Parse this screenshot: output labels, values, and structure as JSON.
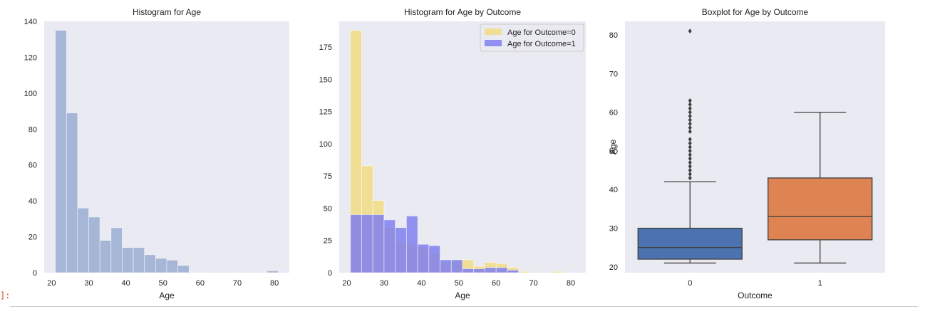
{
  "cell": {
    "prompt": "]:"
  },
  "chart_data": [
    {
      "type": "bar",
      "title": "Histogram for Age",
      "xlabel": "Age",
      "ylabel": "",
      "xlim": [
        18,
        84
      ],
      "ylim": [
        0,
        140
      ],
      "xticks": [
        20,
        30,
        40,
        50,
        60,
        70,
        80
      ],
      "yticks": [
        0,
        20,
        40,
        60,
        80,
        100,
        120,
        140
      ],
      "grid": false,
      "bin_edges": [
        21,
        24,
        27,
        30,
        33,
        36,
        39,
        42,
        45,
        48,
        51,
        54,
        57,
        60,
        63,
        66,
        69,
        72,
        75,
        78,
        81
      ],
      "values": [
        135,
        89,
        36,
        31,
        18,
        25,
        14,
        14,
        10,
        8,
        7,
        4,
        0,
        0,
        0,
        0,
        0,
        0,
        0,
        1
      ],
      "color": "#a2b3d4"
    },
    {
      "type": "bar",
      "title": "Histogram for Age by Outcome",
      "xlabel": "Age",
      "ylabel": "",
      "xlim": [
        18,
        84
      ],
      "ylim": [
        0,
        195
      ],
      "xticks": [
        20,
        30,
        40,
        50,
        60,
        70,
        80
      ],
      "yticks": [
        0,
        25,
        50,
        75,
        100,
        125,
        150,
        175
      ],
      "grid": false,
      "legend_position": "top-right",
      "series": [
        {
          "name": "Age for Outcome=0",
          "color": "#f0dc82",
          "bin_edges": [
            21,
            24,
            27,
            30,
            33,
            36,
            39,
            42,
            45,
            48,
            51,
            54,
            57,
            60,
            63,
            66,
            69,
            72,
            75,
            78,
            81
          ],
          "values": [
            188,
            83,
            56,
            35,
            24,
            22,
            20,
            15,
            8,
            9,
            10,
            5,
            8,
            7,
            4,
            1,
            0,
            0,
            1,
            0
          ]
        },
        {
          "name": "Age for Outcome=1",
          "color": "#8080f0",
          "bin_edges": [
            21,
            24,
            27,
            30,
            33,
            36,
            39,
            42,
            45,
            48,
            51,
            54,
            57,
            60,
            63,
            66,
            69
          ],
          "values": [
            45,
            45,
            45,
            41,
            35,
            44,
            22,
            21,
            10,
            10,
            3,
            3,
            4,
            4,
            2,
            0
          ]
        }
      ]
    },
    {
      "type": "box",
      "title": "Boxplot for Age by Outcome",
      "xlabel": "Outcome",
      "ylabel": "Age",
      "categories": [
        "0",
        "1"
      ],
      "ylim": [
        18.5,
        83.5
      ],
      "yticks": [
        20,
        30,
        40,
        50,
        60,
        70,
        80
      ],
      "grid": false,
      "boxes": [
        {
          "category": "0",
          "whisker_low": 21,
          "q1": 22,
          "median": 25,
          "q3": 30,
          "whisker_high": 42,
          "outliers": [
            43,
            44,
            45,
            46,
            47,
            48,
            49,
            50,
            51,
            52,
            53,
            55,
            56,
            57,
            58,
            59,
            60,
            61,
            62,
            63,
            81
          ],
          "color": "#4c72b0"
        },
        {
          "category": "1",
          "whisker_low": 21,
          "q1": 27,
          "median": 33,
          "q3": 43,
          "whisker_high": 60,
          "outliers": [],
          "color": "#dd8452"
        }
      ]
    }
  ]
}
